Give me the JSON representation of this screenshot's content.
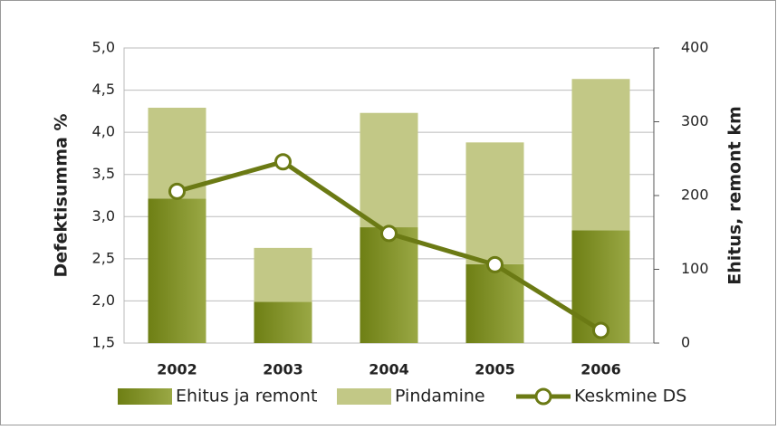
{
  "chart_data": {
    "type": "bar",
    "stacked": true,
    "y_label": "Defektisumma %",
    "y2_label": "Ehitus, remont km",
    "categories": [
      "2002",
      "2003",
      "2004",
      "2005",
      "2006"
    ],
    "series": [
      {
        "name": "Ehitus ja remont",
        "type": "bar",
        "axis": "y2",
        "color": "#7d8f1e",
        "values": [
          196,
          56,
          157,
          107,
          153
        ]
      },
      {
        "name": "Pindamine",
        "type": "bar",
        "axis": "y2",
        "color": "#c2c886",
        "values": [
          123,
          73,
          155,
          165,
          205
        ]
      },
      {
        "name": "Keskmine DS",
        "type": "line",
        "axis": "y",
        "color": "#6b7a14",
        "values": [
          3.3,
          3.65,
          2.8,
          2.43,
          1.65
        ]
      }
    ],
    "ylim": [
      1.5,
      5.0
    ],
    "yticks": [
      {
        "value": 1.5,
        "label": "1,5"
      },
      {
        "value": 2.0,
        "label": "2,0"
      },
      {
        "value": 2.5,
        "label": "2,5"
      },
      {
        "value": 3.0,
        "label": "3,0"
      },
      {
        "value": 3.5,
        "label": "3,5"
      },
      {
        "value": 4.0,
        "label": "4,0"
      },
      {
        "value": 4.5,
        "label": "4,5"
      },
      {
        "value": 5.0,
        "label": "5,0"
      }
    ],
    "y2lim": [
      0,
      400
    ],
    "y2ticks": [
      0,
      100,
      200,
      300,
      400
    ],
    "grid": true,
    "legend": "bottom"
  }
}
